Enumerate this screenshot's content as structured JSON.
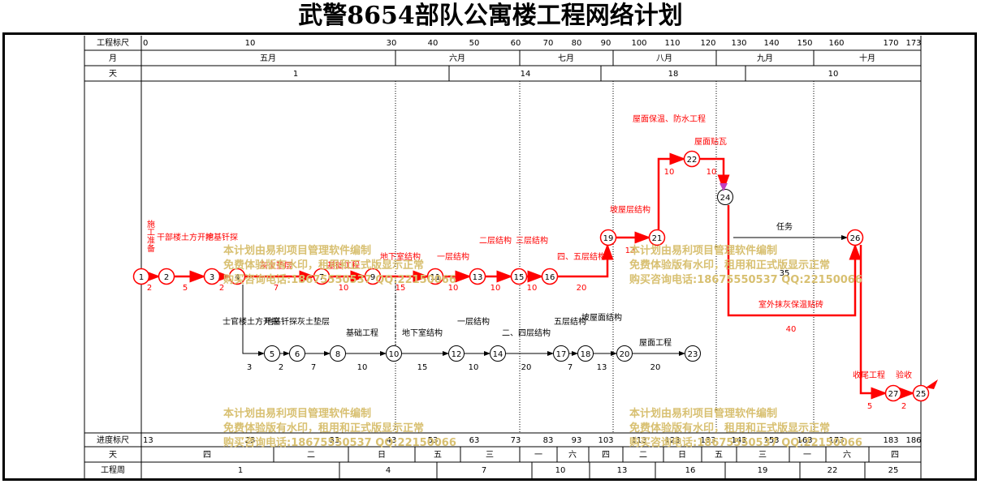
{
  "title": "武警8654部队公寓楼工程网络计划",
  "header": {
    "row_labels": [
      "工程标尺",
      "月",
      "天"
    ],
    "scale_ticks": [
      "0",
      "10",
      "30",
      "40",
      "50",
      "60",
      "70",
      "80",
      "90",
      "100",
      "110",
      "120",
      "130",
      "140",
      "150",
      "160",
      "170",
      "173"
    ],
    "months": [
      "五月",
      "六月",
      "七月",
      "八月",
      "九月",
      "十月"
    ],
    "days": [
      "1",
      "14",
      "18",
      "10"
    ]
  },
  "footer": {
    "row_labels": [
      "进度标尺",
      "天",
      "工程周"
    ],
    "scale_ticks": [
      "13",
      "23",
      "33",
      "43",
      "53",
      "63",
      "73",
      "83",
      "93",
      "103",
      "113",
      "123",
      "133",
      "143",
      "153",
      "163",
      "173",
      "183",
      "186"
    ],
    "weekdays": [
      "四",
      "二",
      "日",
      "五",
      "三",
      "一",
      "六",
      "四",
      "二",
      "日",
      "五",
      "三",
      "一",
      "六",
      "四"
    ],
    "weeks": [
      "1",
      "4",
      "7",
      "10",
      "13",
      "16",
      "19",
      "22",
      "25"
    ]
  },
  "nodes": [
    "1",
    "2",
    "3",
    "4",
    "5",
    "6",
    "7",
    "8",
    "9",
    "10",
    "11",
    "12",
    "13",
    "14",
    "15",
    "16",
    "17",
    "18",
    "19",
    "20",
    "21",
    "22",
    "23",
    "24",
    "25",
    "26",
    "27"
  ],
  "activities": {
    "a1_2": {
      "name": "施工准备",
      "duration": "2"
    },
    "a2_3": {
      "name": "干部楼土方开挖",
      "duration": "5"
    },
    "a3_4": {
      "name": "地基钎探",
      "duration": "2"
    },
    "a4_7": {
      "name": "灰土垫层",
      "duration": "7"
    },
    "a7_9": {
      "name": "基础工程",
      "duration": "10"
    },
    "a9_11": {
      "name": "地下室结构",
      "duration": "15"
    },
    "a11_13": {
      "name": "一层结构",
      "duration": "10"
    },
    "a13_15": {
      "name": "二层结构",
      "duration": "10"
    },
    "a15_16": {
      "name": "三层结构",
      "duration": "10"
    },
    "a16_19": {
      "name": "四、五层结构",
      "duration": "20"
    },
    "a19_21": {
      "name": "坡屋层结构",
      "duration": "13"
    },
    "a21_22": {
      "name": "屋面保温、防水工程",
      "duration": "10"
    },
    "a22_24": {
      "name": "屋面贴瓦",
      "duration": "10"
    },
    "a24_26": {
      "name": "任务",
      "duration": "35"
    },
    "a24_26b": {
      "name": "室外抹灰保温贴砖",
      "duration": "40"
    },
    "a26_27": {
      "name": "收尾工程",
      "duration": "5"
    },
    "a27_25": {
      "name": "验收",
      "duration": "2"
    },
    "a4_5": {
      "name": "士官楼土方开挖",
      "duration": "3"
    },
    "a5_6": {
      "name": "地基钎探",
      "duration": "2"
    },
    "a6_8": {
      "name": "灰土垫层",
      "duration": "7"
    },
    "a8_10": {
      "name": "基础工程",
      "duration": "10"
    },
    "a10_12": {
      "name": "地下室结构",
      "duration": "15"
    },
    "a12_14": {
      "name": "一层结构",
      "duration": "10"
    },
    "a14_17": {
      "name": "二、四层结构",
      "duration": "20"
    },
    "a17_18": {
      "name": "五层结构",
      "duration": "7"
    },
    "a18_20": {
      "name": "坡屋面结构",
      "duration": "13"
    },
    "a20_23": {
      "name": "屋面工程",
      "duration": "20"
    }
  },
  "watermark": [
    "本计划由易利项目管理软件编制",
    "免费体验版有水印，租用和正式版显示正常",
    "购买咨询电话:18675550537 QQ:22150066"
  ],
  "colors": {
    "critical": "#ff0000",
    "normal": "#000000",
    "watermark": "#d8c071"
  }
}
